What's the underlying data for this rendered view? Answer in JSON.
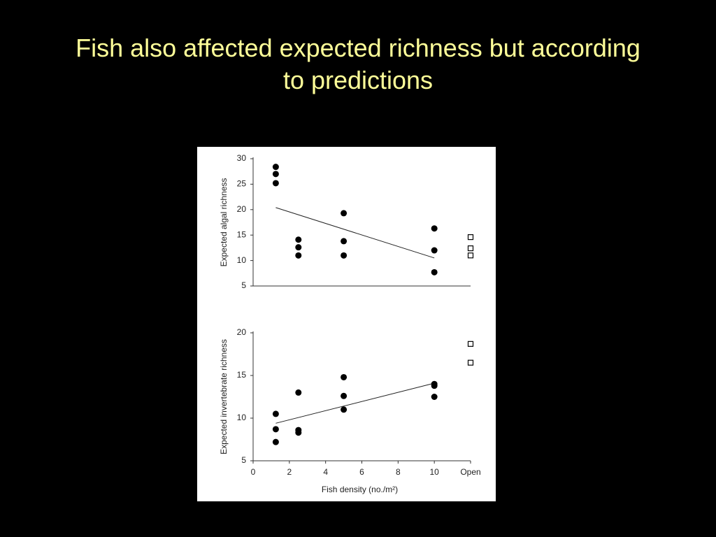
{
  "slide": {
    "title": "Fish also affected expected richness but according to predictions"
  },
  "chart_data": [
    {
      "type": "scatter",
      "ylabel": "Expected algal richness",
      "xlim": [
        0,
        12
      ],
      "ylim": [
        5,
        30
      ],
      "yticks": [
        5,
        10,
        15,
        20,
        25,
        30
      ],
      "series": [
        {
          "color": "#000000",
          "marker": "circle",
          "x": [
            1.25,
            1.25,
            1.25,
            2.5,
            2.5,
            2.5,
            5,
            5,
            5,
            10,
            10,
            10
          ],
          "values": [
            28.4,
            27.0,
            25.2,
            14.1,
            12.6,
            11.0,
            19.3,
            13.8,
            11.0,
            16.3,
            12.0,
            7.7
          ]
        },
        {
          "color": "#000000",
          "marker": "square",
          "x": [
            12,
            12,
            12
          ],
          "values": [
            14.6,
            12.4,
            11.0
          ]
        }
      ],
      "fit": {
        "x": [
          1.25,
          10
        ],
        "values": [
          20.4,
          10.5
        ]
      }
    },
    {
      "type": "scatter",
      "ylabel": "Expected invertebrate richness",
      "xlabel": "Fish density (no./m²)",
      "xlim": [
        0,
        12
      ],
      "ylim": [
        5,
        20
      ],
      "yticks": [
        5,
        10,
        15,
        20
      ],
      "xticks": [
        0,
        2,
        4,
        6,
        8,
        10,
        {
          "value": 12,
          "label": "Open"
        }
      ],
      "series": [
        {
          "color": "#000000",
          "marker": "circle",
          "x": [
            1.25,
            1.25,
            1.25,
            2.5,
            2.5,
            2.5,
            5,
            5,
            5,
            10,
            10,
            10
          ],
          "values": [
            10.5,
            8.7,
            7.2,
            13.0,
            8.6,
            8.3,
            14.8,
            12.6,
            11.0,
            14.0,
            13.8,
            12.5
          ]
        },
        {
          "color": "#000000",
          "marker": "square",
          "x": [
            12,
            12
          ],
          "values": [
            18.7,
            16.5
          ]
        }
      ],
      "fit": {
        "x": [
          1.25,
          10
        ],
        "values": [
          9.4,
          14.1
        ]
      }
    }
  ]
}
